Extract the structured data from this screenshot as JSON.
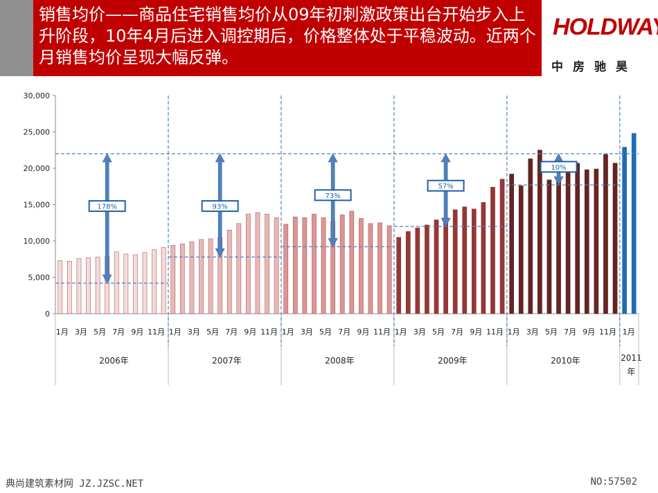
{
  "header": {
    "title": "销售均价——商品住宅销售均价从09年初刺激政策出台开始步入上升阶段，10年4月后进入调控期后，价格整体处于平稳波动。近两个月销售均价呈现大幅反弹。",
    "logo_text": "HOLDWAYS",
    "logo_sub": "中房驰昊"
  },
  "colors": {
    "header_red": "#c00000",
    "bar_2006": "#f2dcdb",
    "bar_2007": "#e6b9b8",
    "bar_2008": "#d99694",
    "bar_2009": "#953735",
    "bar_2010": "#632523",
    "bar_2011": "#1f6db5",
    "arrow": "#4f81bd",
    "dashed": "#4f81bd"
  },
  "chart_data": {
    "type": "bar",
    "ylim": [
      0,
      30000
    ],
    "y_ticks": [
      "0",
      "5,000",
      "10,000",
      "15,000",
      "20,000",
      "25,000",
      "30,000"
    ],
    "groups": [
      {
        "year": "2006年",
        "color_key": "bar_2006",
        "values": [
          7300,
          7200,
          7600,
          7700,
          7800,
          7900,
          8500,
          8200,
          8100,
          8400,
          8800,
          9100
        ],
        "avg": 4200
      },
      {
        "year": "2007年",
        "color_key": "bar_2007",
        "values": [
          9400,
          9600,
          9900,
          10200,
          10300,
          10500,
          11500,
          12400,
          13700,
          13900,
          13700,
          13200
        ],
        "avg": 7800
      },
      {
        "year": "2008年",
        "color_key": "bar_2008",
        "values": [
          12300,
          13300,
          13200,
          13700,
          13200,
          12700,
          13600,
          14100,
          13100,
          12400,
          12500,
          12100
        ],
        "avg": 9200
      },
      {
        "year": "2009年",
        "color_key": "bar_2009",
        "values": [
          10500,
          11300,
          11800,
          12200,
          12900,
          13200,
          14300,
          14700,
          14400,
          15300,
          17400,
          18500
        ],
        "avg": 12000
      },
      {
        "year": "2010年",
        "color_key": "bar_2010",
        "values": [
          19200,
          17600,
          21300,
          22500,
          18400,
          18500,
          19500,
          20700,
          19800,
          19900,
          21900,
          20700
        ],
        "avg": 17700
      },
      {
        "year": "2011年",
        "color_key": "bar_2011",
        "values": [
          22900,
          24800
        ],
        "avg": null
      }
    ],
    "top_line": 22000,
    "arrows": [
      {
        "group": 0,
        "label": "178%",
        "label_y": 14800
      },
      {
        "group": 1,
        "label": "93%",
        "label_y": 14800
      },
      {
        "group": 2,
        "label": "73%",
        "label_y": 16300
      },
      {
        "group": 3,
        "label": "57%",
        "label_y": 17600
      },
      {
        "group": 4,
        "label": "10%",
        "label_y": 20200
      }
    ],
    "month_labels": [
      "1月",
      "3月",
      "5月",
      "7月",
      "9月",
      "11月"
    ]
  },
  "footer": {
    "left": "典尚建筑素材网 JZ.JZSC.NET",
    "right": "NO:57502"
  }
}
